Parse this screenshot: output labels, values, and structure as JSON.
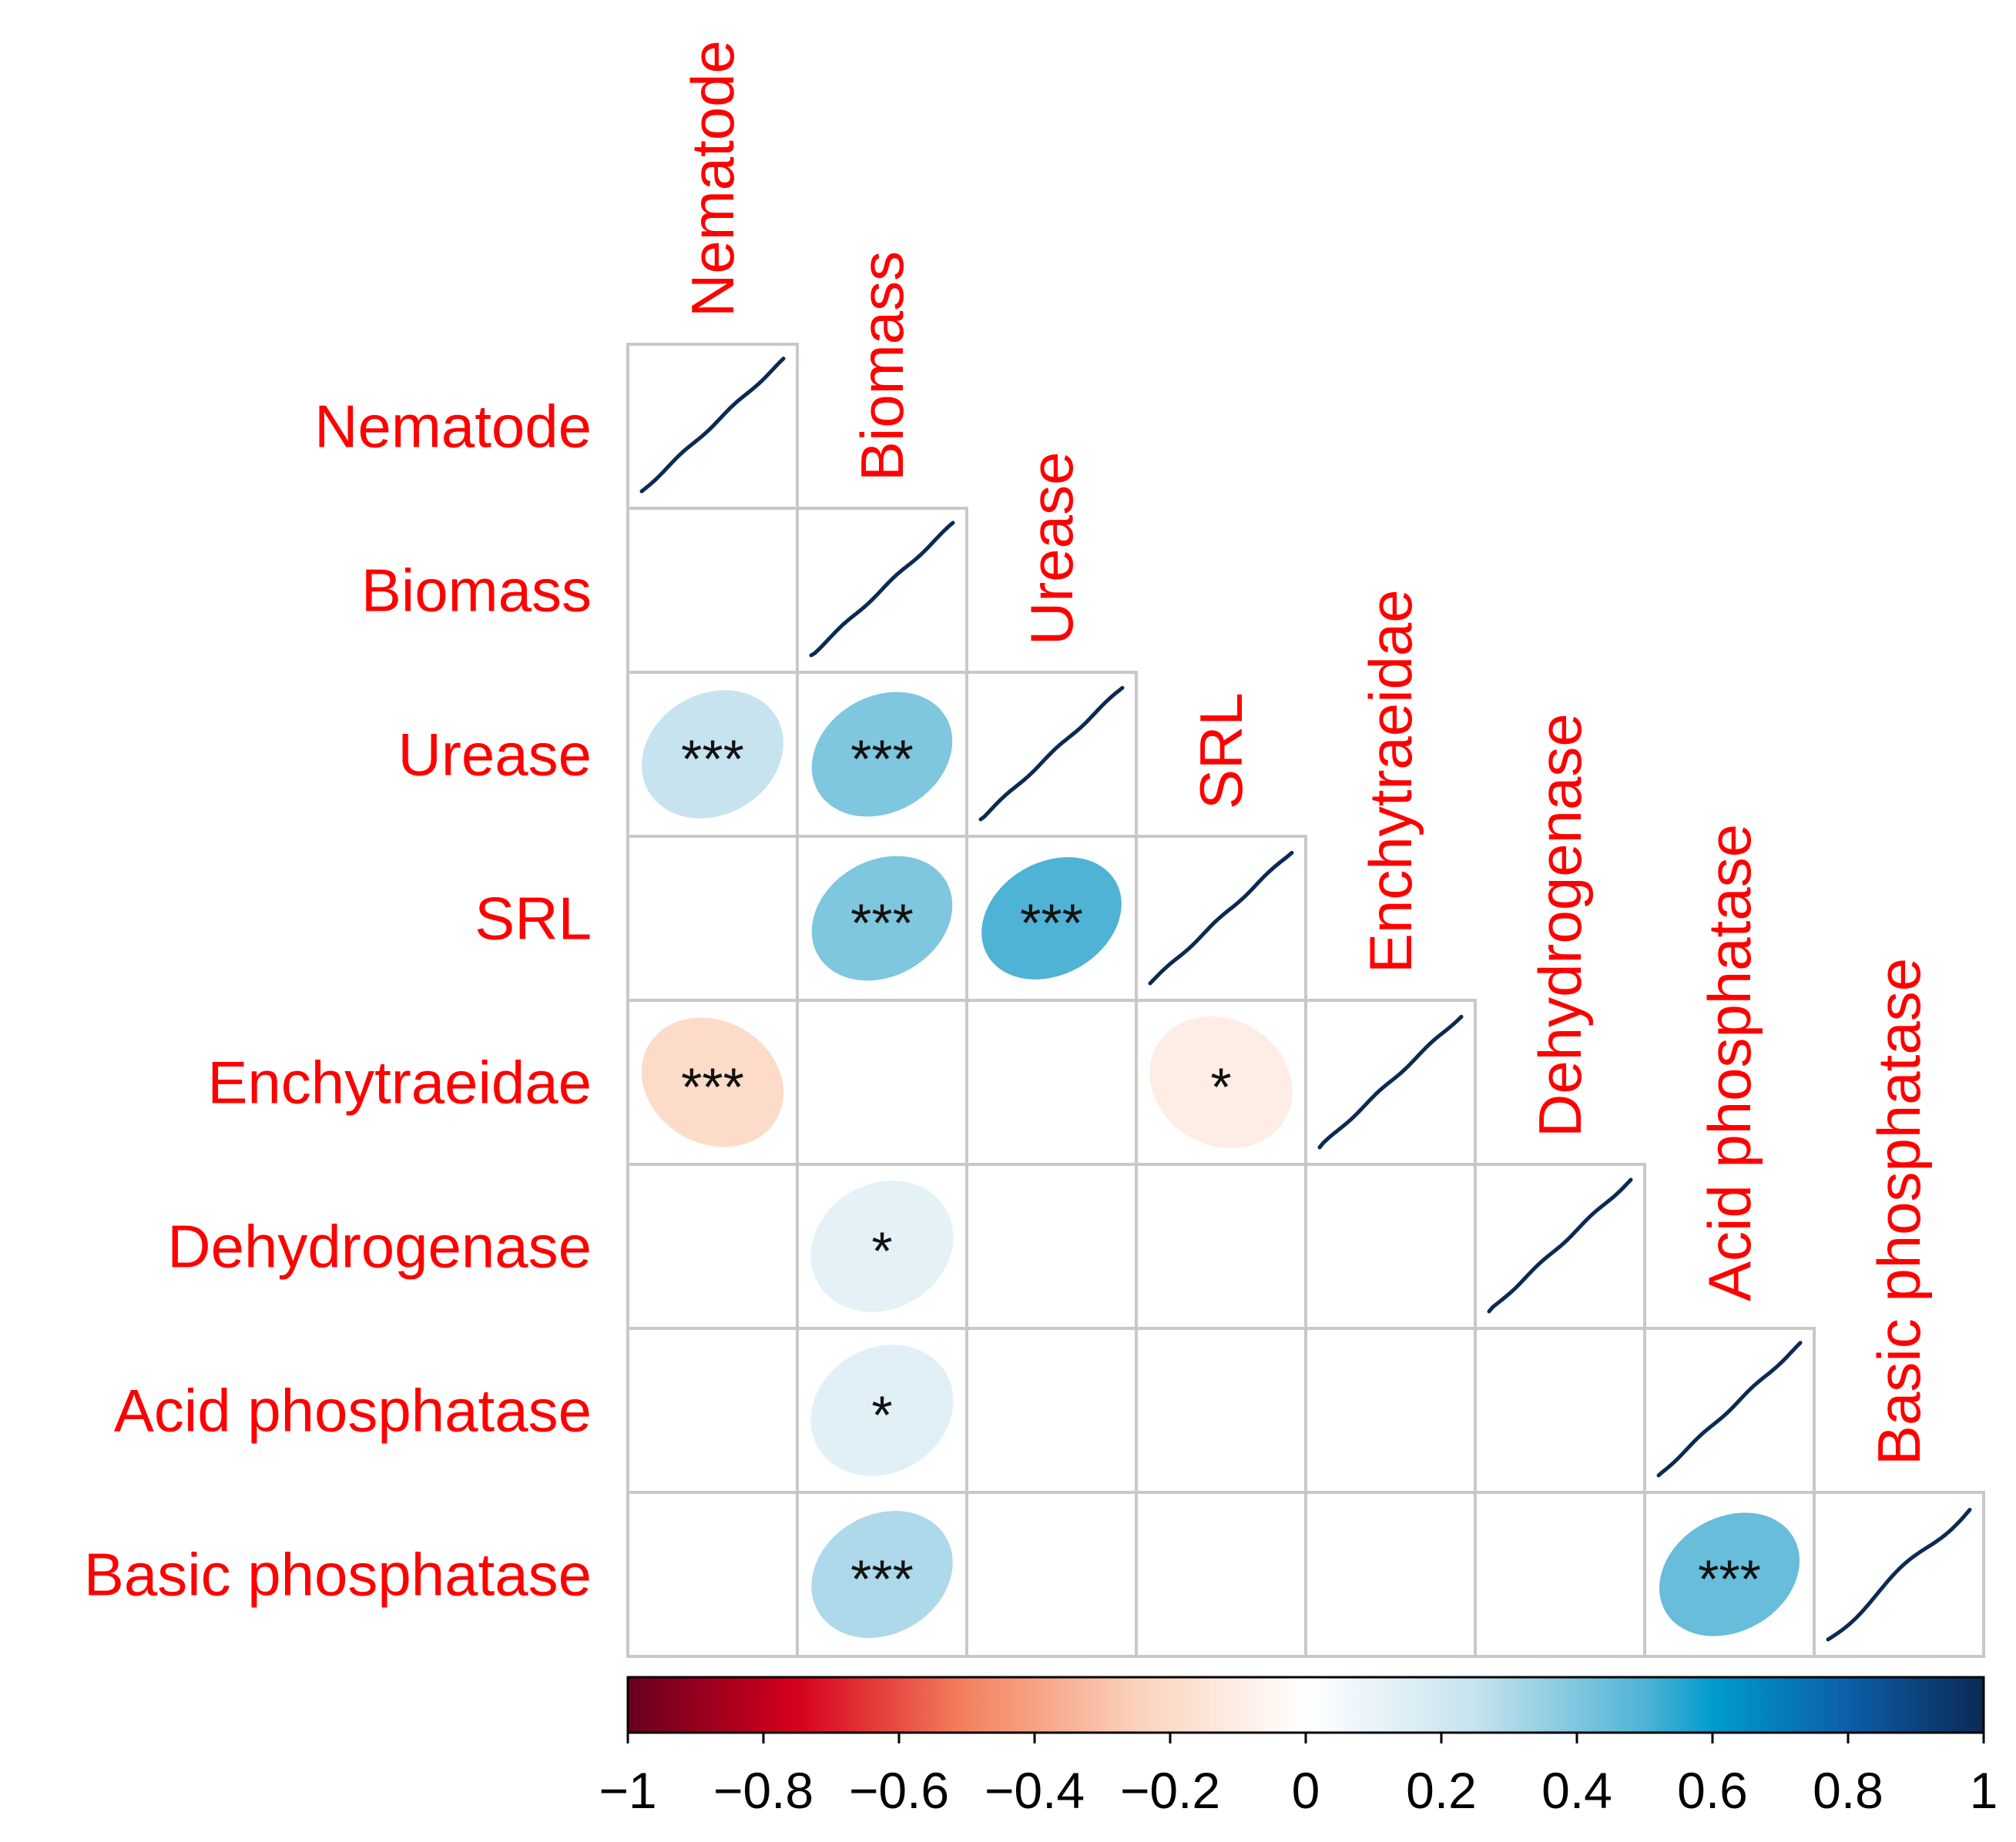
{
  "chart_data": {
    "type": "heatmap",
    "subtype": "correlation-matrix-lower-triangle",
    "variables": [
      "Nematode",
      "Biomass",
      "Urease",
      "SRL",
      "Enchytraeidae",
      "Dehydrogenase",
      "Acid phosphatase",
      "Basic phosphatase"
    ],
    "cells": [
      {
        "row": "Urease",
        "col": "Nematode",
        "r": 0.25,
        "sig": "***"
      },
      {
        "row": "Urease",
        "col": "Biomass",
        "r": 0.4,
        "sig": "***"
      },
      {
        "row": "SRL",
        "col": "Biomass",
        "r": 0.4,
        "sig": "***"
      },
      {
        "row": "SRL",
        "col": "Urease",
        "r": 0.5,
        "sig": "***"
      },
      {
        "row": "Enchytraeidae",
        "col": "Nematode",
        "r": -0.2,
        "sig": "***"
      },
      {
        "row": "Enchytraeidae",
        "col": "SRL",
        "r": -0.1,
        "sig": "*"
      },
      {
        "row": "Dehydrogenase",
        "col": "Biomass",
        "r": 0.12,
        "sig": "*"
      },
      {
        "row": "Acid phosphatase",
        "col": "Biomass",
        "r": 0.13,
        "sig": "*"
      },
      {
        "row": "Basic phosphatase",
        "col": "Biomass",
        "r": 0.3,
        "sig": "***"
      },
      {
        "row": "Basic phosphatase",
        "col": "Acid phosphatase",
        "r": 0.45,
        "sig": "***"
      }
    ],
    "diagonal": "fitted line (r = 1)",
    "colorbar": {
      "range": [
        -1,
        1
      ],
      "ticks": [
        "−1",
        "−0.8",
        "−0.6",
        "−0.4",
        "−0.2",
        "0",
        "0.2",
        "0.4",
        "0.6",
        "0.8",
        "1"
      ],
      "stops": [
        {
          "value": -1,
          "color": "#67001f"
        },
        {
          "value": -0.75,
          "color": "#d6001c"
        },
        {
          "value": -0.5,
          "color": "#f4825f"
        },
        {
          "value": -0.25,
          "color": "#fbd2bc"
        },
        {
          "value": 0,
          "color": "#ffffff"
        },
        {
          "value": 0.25,
          "color": "#c6e3ef"
        },
        {
          "value": 0.5,
          "color": "#4fb3d5"
        },
        {
          "value": 0.6,
          "color": "#009ccd"
        },
        {
          "value": 0.8,
          "color": "#0c5ea8"
        },
        {
          "value": 1,
          "color": "#0b2a55"
        }
      ]
    },
    "colors": {
      "label": "#ff0000",
      "grid": "#c8c8c8",
      "diag_line": "#0b2a55",
      "text": "#000000"
    }
  }
}
